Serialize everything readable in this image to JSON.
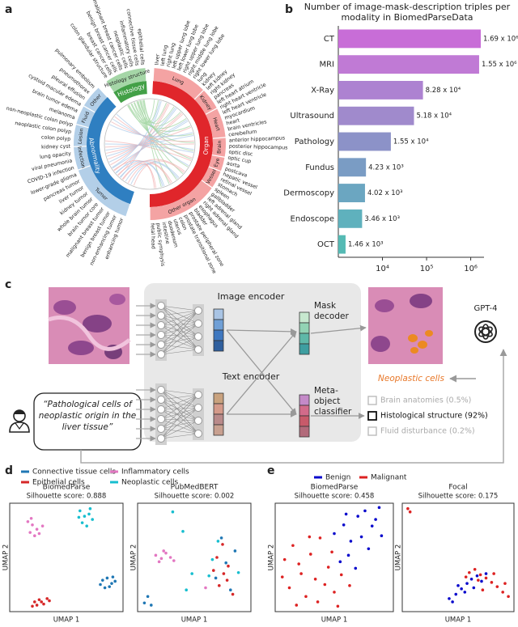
{
  "panel_labels": [
    "a",
    "b",
    "c",
    "d",
    "e"
  ],
  "panel_a": {
    "categories": [
      {
        "name": "Histology",
        "color": "#43a047",
        "light_color": "#a5d6a7",
        "subgroups": [
          "Histology structure"
        ],
        "labels": [
          "colon glandular structure",
          "breast cancer cells",
          "benign breast cancer cells",
          "malignant breast cancer cells",
          "neoplastic cells",
          "inflammatory cells",
          "connective tissue cells",
          "epithelial cells"
        ]
      },
      {
        "name": "Organ",
        "color": "#e0262b",
        "light_color": "#f4a3a3",
        "subgroups": [
          "Lung",
          "Kidney",
          "Heart",
          "Brain",
          "Eye",
          "Vessel",
          "Other organ"
        ],
        "labels": [
          "liver",
          "left lung",
          "right lung",
          "left upper lung lobe",
          "left lower lung lobe",
          "right upper lung lobe",
          "right middle lung lobe",
          "right lower lung lobe",
          "lung",
          "kidney",
          "left kidney",
          "right kidney",
          "pancreas",
          "left heart atrium",
          "right heart ventricle",
          "left heart ventricle",
          "myocardium",
          "heart",
          "brain ventricles",
          "cerebellum",
          "anterior hippocampus",
          "posterior hippocampus",
          "optic disc",
          "optic cup",
          "aorta",
          "postcava",
          "hepatic vessel",
          "retinal vessel",
          "stomach",
          "spleen",
          "gallbladder",
          "left adrenal gland",
          "right adrenal gland",
          "esophagus",
          "bladder",
          "prostate peripheral zone",
          "prostate transitional zone",
          "colon",
          "uterus",
          "duodenum",
          "intestine",
          "public symphysis",
          "fetal head"
        ]
      },
      {
        "name": "Abnormality",
        "color": "#2f7fc1",
        "light_color": "#b3cfe8",
        "subgroups": [
          "Tumor",
          "Infection",
          "Lesion",
          "Fluid",
          "Other"
        ],
        "labels": [
          "enhancing tumor",
          "non-enhancing tumor",
          "benign breast tumor",
          "malignant breast tumor",
          "brain tumor core",
          "whole brain tumor",
          "kidney tumor",
          "liver tumor",
          "pancreas tumor",
          "lower-grade glioma",
          "COVID-19 infection",
          "viral pneumonia",
          "lung opacity",
          "kidney cyst",
          "colon polyp",
          "neoplastic colon polyp",
          "non-neoplastic colon polyp",
          "melanoma",
          "brain tumor edema",
          "cystoid macular edema",
          "pleural effusion",
          "pneumothorax",
          "pulmonary embolism"
        ]
      }
    ]
  },
  "panel_c": {
    "image_encoder": "Image encoder",
    "text_encoder": "Text encoder",
    "mask_decoder": "Mask decoder",
    "classifier": "Meta-object classifier",
    "gpt": "GPT-4",
    "output": "Neoplastic cells",
    "prompt": "“Pathological cells of neoplastic origin in the liver tissue”",
    "options": [
      "Brain anatomies (0.5%)",
      "Histological structure (92%)",
      "Fluid disturbance (0.2%)"
    ]
  },
  "chart_data": [
    {
      "type": "bar",
      "orientation": "horizontal",
      "title": "Number of image-mask-description triples per modality in BiomedParseData",
      "categories": [
        "CT",
        "MRI",
        "X-Ray",
        "Ultrasound",
        "Pathology",
        "Fundus",
        "Dermoscopy",
        "Endoscope",
        "OCT"
      ],
      "values": [
        1690000,
        1550000,
        82800,
        51800,
        15500,
        4230,
        4020,
        3460,
        1460
      ],
      "value_labels": [
        "1.69 x 10⁶",
        "1.55 x 10⁶",
        "8.28 x 10⁴",
        "5.18 x 10⁴",
        "1.55 x 10⁴",
        "4.23 x 10³",
        "4.02 x 10³",
        "3.46 x 10³",
        "1.46 x 10³"
      ],
      "colors": [
        "#c86dd7",
        "#c07ad5",
        "#ad82d1",
        "#a08acc",
        "#8c92c8",
        "#7a9cc4",
        "#6ba6c1",
        "#5fb1bd",
        "#55bab4"
      ],
      "xscale": "log",
      "xlim": [
        1000,
        2000000
      ],
      "xticks": [
        {
          "value": 10000,
          "label": "10⁴"
        },
        {
          "value": 100000,
          "label": "10⁵"
        },
        {
          "value": 1000000,
          "label": "10⁶"
        }
      ]
    },
    {
      "type": "scatter",
      "title": "BiomedParse",
      "subtitle": "Silhouette score: 0.888",
      "x_label": "UMAP 1",
      "y_label": "UMAP 2",
      "xlim": [
        0,
        10
      ],
      "ylim": [
        0,
        10
      ],
      "series": [
        {
          "name": "Connective tissue cells",
          "color": "#1f77b4",
          "x": [
            8.2,
            8.6,
            9.0,
            8.8,
            9.3,
            8.4,
            9.1,
            8.0
          ],
          "values": [
            2.9,
            3.1,
            2.6,
            2.3,
            2.8,
            2.2,
            3.2,
            2.5
          ]
        },
        {
          "name": "Inflammatory cells",
          "color": "#e377c2",
          "x": [
            1.6,
            2.0,
            2.4,
            1.8,
            2.9,
            2.2,
            2.6,
            1.9
          ],
          "values": [
            8.3,
            8.0,
            7.6,
            7.3,
            7.9,
            7.0,
            7.2,
            8.6
          ]
        },
        {
          "name": "Epithelial cells",
          "color": "#d62728",
          "x": [
            2.2,
            2.6,
            3.0,
            2.4,
            3.3,
            2.8,
            2.0,
            3.5
          ],
          "values": [
            0.9,
            1.1,
            0.7,
            0.6,
            1.2,
            0.9,
            0.5,
            1.0
          ]
        },
        {
          "name": "Neoplastic cells",
          "color": "#17becf",
          "x": [
            6.2,
            6.6,
            7.0,
            6.4,
            7.3,
            6.8,
            6.1,
            7.1
          ],
          "values": [
            9.3,
            8.8,
            9.0,
            8.2,
            8.5,
            7.9,
            8.7,
            9.5
          ]
        }
      ]
    },
    {
      "type": "scatter",
      "title": "PubMedBERT",
      "subtitle": "Silhouette score: 0.002",
      "x_label": "UMAP 1",
      "y_label": "UMAP 2",
      "xlim": [
        0,
        10
      ],
      "ylim": [
        0,
        10
      ],
      "series": [
        {
          "color": "#1f77b4",
          "x": [
            0.6,
            0.9,
            1.2,
            7.4,
            7.8,
            8.2,
            8.6,
            6.9
          ],
          "values": [
            0.8,
            1.4,
            0.6,
            6.8,
            4.5,
            2.0,
            5.6,
            3.1
          ]
        },
        {
          "color": "#e377c2",
          "x": [
            1.6,
            2.1,
            2.5,
            2.9,
            3.2,
            1.9,
            6.0,
            2.3
          ],
          "values": [
            5.2,
            4.9,
            5.4,
            5.0,
            4.7,
            4.6,
            2.2,
            5.6
          ]
        },
        {
          "color": "#d62728",
          "x": [
            7.2,
            7.6,
            8.0,
            7.0,
            8.4,
            7.5,
            7.9,
            6.7
          ],
          "values": [
            2.4,
            3.5,
            4.2,
            5.0,
            1.6,
            6.2,
            2.9,
            3.8
          ]
        },
        {
          "color": "#17becf",
          "x": [
            3.1,
            4.0,
            4.8,
            6.3,
            6.6,
            7.1,
            8.9,
            4.3
          ],
          "values": [
            9.2,
            7.4,
            3.5,
            3.3,
            4.8,
            6.5,
            3.6,
            2.0
          ]
        }
      ]
    },
    {
      "type": "scatter",
      "title": "BiomedParse",
      "subtitle": "Silhouette score: 0.458",
      "x_label": "UMAP 1",
      "y_label": "UMAP 2",
      "xlim": [
        0,
        10
      ],
      "ylim": [
        0,
        10
      ],
      "series": [
        {
          "name": "Benign",
          "color": "#0a0acc",
          "x": [
            5.0,
            5.8,
            6.4,
            7.0,
            7.6,
            8.2,
            8.8,
            6.2,
            7.3,
            8.5,
            5.5,
            6.8,
            7.9,
            9.0,
            6.0
          ],
          "values": [
            7.2,
            8.0,
            6.5,
            8.8,
            9.3,
            7.9,
            9.6,
            5.2,
            6.9,
            8.5,
            4.6,
            4.0,
            5.8,
            7.0,
            9.0
          ]
        },
        {
          "name": "Malignant",
          "color": "#dd2222",
          "x": [
            0.8,
            1.5,
            2.2,
            3.0,
            3.8,
            4.5,
            1.2,
            2.6,
            3.4,
            4.2,
            5.0,
            5.6,
            1.8,
            2.9,
            6.3,
            0.6,
            3.6,
            4.8,
            2.0,
            5.3
          ],
          "values": [
            4.8,
            6.1,
            3.5,
            5.3,
            6.8,
            4.1,
            2.2,
            1.4,
            3.0,
            2.5,
            1.8,
            3.4,
            0.6,
            6.9,
            2.4,
            3.2,
            0.9,
            5.5,
            4.4,
            0.5
          ]
        }
      ]
    },
    {
      "type": "scatter",
      "title": "Focal",
      "subtitle": "Silhouette score: 0.175",
      "x_label": "UMAP 1",
      "y_label": "UMAP 2",
      "xlim": [
        0,
        10
      ],
      "ylim": [
        0,
        10
      ],
      "series": [
        {
          "color": "#0a0acc",
          "x": [
            4.2,
            4.8,
            5.3,
            5.8,
            6.2,
            6.7,
            7.1,
            5.0,
            5.6,
            6.4,
            4.5,
            7.5
          ],
          "values": [
            1.2,
            1.6,
            2.1,
            2.6,
            3.0,
            3.3,
            2.8,
            2.4,
            1.8,
            2.2,
            0.9,
            3.5
          ]
        },
        {
          "color": "#dd2222",
          "x": [
            0.5,
            0.7,
            6.0,
            6.5,
            7.0,
            7.5,
            8.0,
            8.5,
            9.0,
            9.5,
            7.2,
            6.8,
            8.2,
            5.7,
            9.2
          ],
          "values": [
            9.5,
            9.2,
            3.6,
            3.9,
            3.4,
            3.1,
            2.7,
            2.3,
            1.8,
            1.4,
            2.0,
            2.9,
            3.5,
            3.2,
            2.6
          ]
        }
      ]
    }
  ]
}
